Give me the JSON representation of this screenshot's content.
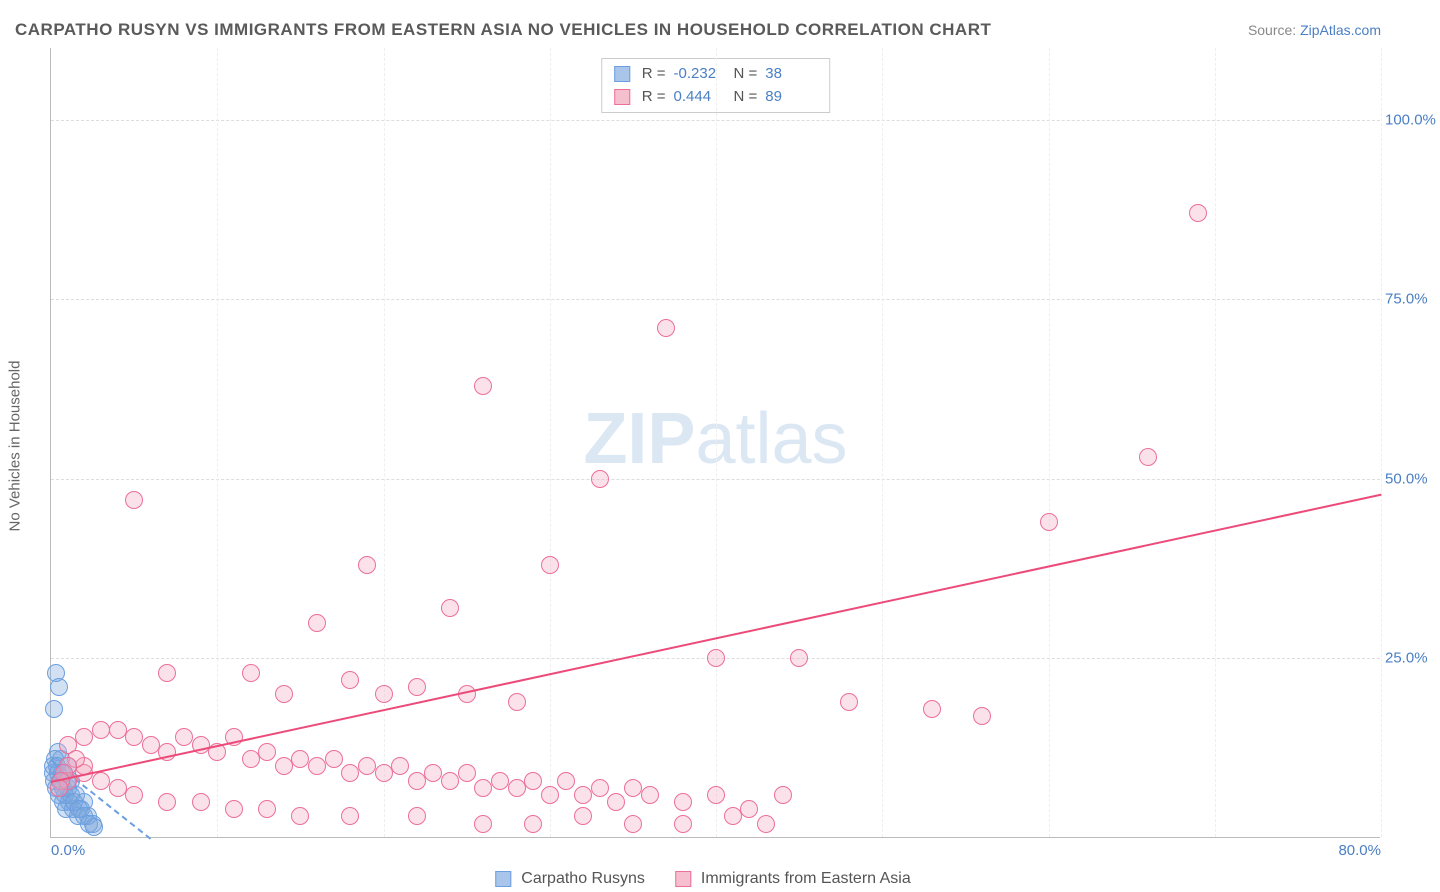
{
  "title": "CARPATHO RUSYN VS IMMIGRANTS FROM EASTERN ASIA NO VEHICLES IN HOUSEHOLD CORRELATION CHART",
  "source_prefix": "Source: ",
  "source_link": "ZipAtlas.com",
  "ylabel": "No Vehicles in Household",
  "watermark_a": "ZIP",
  "watermark_b": "atlas",
  "chart": {
    "type": "scatter",
    "xlim": [
      0,
      80
    ],
    "ylim": [
      0,
      110
    ],
    "xticks": [
      {
        "v": 0,
        "l": "0.0%"
      },
      {
        "v": 80,
        "l": "80.0%"
      }
    ],
    "yticks": [
      {
        "v": 25,
        "l": "25.0%"
      },
      {
        "v": 50,
        "l": "50.0%"
      },
      {
        "v": 75,
        "l": "75.0%"
      },
      {
        "v": 100,
        "l": "100.0%"
      }
    ],
    "xgrid": [
      10,
      20,
      30,
      40,
      50,
      60,
      70,
      80
    ],
    "background_color": "#ffffff",
    "grid_color": "#dddddd",
    "marker_radius": 9,
    "marker_stroke_width": 1.5,
    "series": [
      {
        "name": "Carpatho Rusyns",
        "fill": "rgba(124,166,222,0.35)",
        "stroke": "#6b9fe0",
        "swatch_fill": "#a9c6ea",
        "swatch_border": "#6b9fe0",
        "R": "-0.232",
        "N": "38",
        "trend": {
          "x1": 0,
          "y1": 11,
          "x2": 6,
          "y2": 0,
          "color": "#6b9fe0",
          "dash": true
        },
        "points": [
          [
            0.3,
            23
          ],
          [
            0.5,
            21
          ],
          [
            0.2,
            18
          ],
          [
            1.0,
            10
          ],
          [
            1.2,
            8
          ],
          [
            0.8,
            9
          ],
          [
            1.5,
            6
          ],
          [
            2.0,
            5
          ],
          [
            0.4,
            12
          ],
          [
            0.6,
            11
          ],
          [
            0.1,
            9
          ],
          [
            0.2,
            8
          ],
          [
            0.3,
            7
          ],
          [
            0.5,
            6
          ],
          [
            0.7,
            5
          ],
          [
            0.9,
            4
          ],
          [
            1.1,
            5
          ],
          [
            1.3,
            4
          ],
          [
            1.6,
            3
          ],
          [
            1.8,
            4
          ],
          [
            2.2,
            3
          ],
          [
            2.5,
            2
          ],
          [
            0.15,
            10
          ],
          [
            0.25,
            11
          ],
          [
            0.35,
            10
          ],
          [
            0.45,
            9
          ],
          [
            0.55,
            8
          ],
          [
            0.65,
            9
          ],
          [
            0.75,
            7
          ],
          [
            0.85,
            6
          ],
          [
            0.95,
            8
          ],
          [
            1.05,
            7
          ],
          [
            1.2,
            6
          ],
          [
            1.4,
            5
          ],
          [
            1.7,
            4
          ],
          [
            2.0,
            3
          ],
          [
            2.3,
            2
          ],
          [
            2.6,
            1.5
          ]
        ]
      },
      {
        "name": "Immigrants from Eastern Asia",
        "fill": "rgba(243,169,191,0.35)",
        "stroke": "#ec6f98",
        "swatch_fill": "#f6bfd0",
        "swatch_border": "#ec6f98",
        "R": "0.444",
        "N": "89",
        "trend": {
          "x1": 0,
          "y1": 8,
          "x2": 80,
          "y2": 48,
          "color": "#ec4b7a",
          "dash": false
        },
        "points": [
          [
            69,
            87
          ],
          [
            37,
            71
          ],
          [
            26,
            63
          ],
          [
            33,
            50
          ],
          [
            66,
            53
          ],
          [
            60,
            44
          ],
          [
            30,
            38
          ],
          [
            19,
            38
          ],
          [
            16,
            30
          ],
          [
            24,
            32
          ],
          [
            5,
            47
          ],
          [
            7,
            23
          ],
          [
            12,
            23
          ],
          [
            14,
            20
          ],
          [
            18,
            22
          ],
          [
            20,
            20
          ],
          [
            22,
            21
          ],
          [
            25,
            20
          ],
          [
            28,
            19
          ],
          [
            40,
            25
          ],
          [
            45,
            25
          ],
          [
            48,
            19
          ],
          [
            53,
            18
          ],
          [
            56,
            17
          ],
          [
            1,
            13
          ],
          [
            2,
            14
          ],
          [
            3,
            15
          ],
          [
            4,
            15
          ],
          [
            5,
            14
          ],
          [
            6,
            13
          ],
          [
            7,
            12
          ],
          [
            8,
            14
          ],
          [
            9,
            13
          ],
          [
            10,
            12
          ],
          [
            11,
            14
          ],
          [
            12,
            11
          ],
          [
            13,
            12
          ],
          [
            14,
            10
          ],
          [
            15,
            11
          ],
          [
            16,
            10
          ],
          [
            17,
            11
          ],
          [
            18,
            9
          ],
          [
            19,
            10
          ],
          [
            20,
            9
          ],
          [
            21,
            10
          ],
          [
            22,
            8
          ],
          [
            23,
            9
          ],
          [
            24,
            8
          ],
          [
            25,
            9
          ],
          [
            26,
            7
          ],
          [
            27,
            8
          ],
          [
            28,
            7
          ],
          [
            29,
            8
          ],
          [
            30,
            6
          ],
          [
            31,
            8
          ],
          [
            32,
            6
          ],
          [
            33,
            7
          ],
          [
            34,
            5
          ],
          [
            35,
            7
          ],
          [
            36,
            6
          ],
          [
            38,
            5
          ],
          [
            40,
            6
          ],
          [
            42,
            4
          ],
          [
            44,
            6
          ],
          [
            41,
            3
          ],
          [
            43,
            2
          ],
          [
            38,
            2
          ],
          [
            35,
            2
          ],
          [
            32,
            3
          ],
          [
            29,
            2
          ],
          [
            26,
            2
          ],
          [
            22,
            3
          ],
          [
            18,
            3
          ],
          [
            15,
            3
          ],
          [
            13,
            4
          ],
          [
            11,
            4
          ],
          [
            9,
            5
          ],
          [
            7,
            5
          ],
          [
            5,
            6
          ],
          [
            4,
            7
          ],
          [
            3,
            8
          ],
          [
            2,
            9
          ],
          [
            2,
            10
          ],
          [
            1.5,
            11
          ],
          [
            1,
            10
          ],
          [
            1,
            8
          ],
          [
            0.8,
            9
          ],
          [
            0.6,
            8
          ],
          [
            0.5,
            7
          ]
        ]
      }
    ]
  },
  "legend_bottom": [
    {
      "label": "Carpatho Rusyns",
      "series": 0
    },
    {
      "label": "Immigrants from Eastern Asia",
      "series": 1
    }
  ]
}
